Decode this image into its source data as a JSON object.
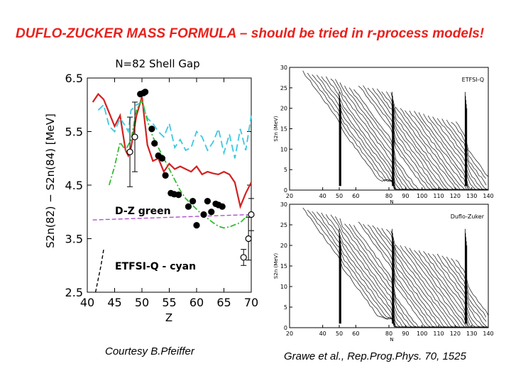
{
  "slide": {
    "title": "DUFLO-ZUCKER MASS FORMULA – should be tried in r-process models!",
    "credit_left": "Courtesy B.Pfeiffer",
    "credit_right": "Grawe et al., Rep.Prog.Phys. 70, 1525"
  },
  "colors": {
    "title": "#e8211c",
    "red_model": "#d42020",
    "cyan_model": "#3cc8e0",
    "green_model": "#33bb33",
    "magenta_line": "#b050d0"
  },
  "chart_data": [
    {
      "type": "scatter",
      "title": "N=82 Shell Gap",
      "xlabel": "Z",
      "ylabel": "S2n(82) − S2n(84) [MeV]",
      "xlim": [
        40,
        70
      ],
      "ylim": [
        2.5,
        6.5
      ],
      "xticks": [
        "40",
        "45",
        "50",
        "55",
        "60",
        "65",
        "70"
      ],
      "yticks": [
        "2.5",
        "3.5",
        "4.5",
        "5.5",
        "6.5"
      ],
      "annotations": [
        "D-Z green",
        "ETFSI-Q - cyan"
      ],
      "series": [
        {
          "name": "experiment",
          "marker": "filled",
          "x": [
            49.7,
            50.3,
            50.6,
            51.8,
            52.3,
            53.0,
            53.7,
            54.3,
            55.3,
            55.9,
            56.7,
            58.5,
            59.3,
            60.0,
            61.3,
            62.0,
            62.7,
            63.5,
            64.0,
            64.7
          ],
          "y": [
            6.2,
            6.22,
            6.24,
            5.55,
            5.28,
            5.05,
            5.0,
            4.68,
            4.35,
            4.33,
            4.32,
            4.1,
            4.2,
            3.75,
            3.95,
            4.2,
            4.0,
            4.15,
            4.13,
            4.1
          ]
        },
        {
          "name": "experiment (open)",
          "marker": "open",
          "x": [
            47.8,
            48.7,
            68.6,
            69.5,
            70.0
          ],
          "y": [
            5.12,
            5.4,
            3.15,
            3.5,
            3.95
          ],
          "err": [
            0.65,
            0.65,
            0.15,
            0.4,
            0.3
          ]
        },
        {
          "name": "red model",
          "type": "line",
          "x": [
            41,
            42,
            43,
            44,
            45,
            46,
            47,
            47.5,
            48,
            49,
            50,
            51,
            52,
            53,
            54,
            55,
            56,
            57,
            58,
            59,
            60,
            61,
            62,
            63,
            64,
            65,
            66,
            67,
            68,
            69,
            70
          ],
          "y": [
            6.05,
            6.2,
            6.1,
            5.85,
            5.6,
            5.8,
            5.15,
            5.05,
            5.2,
            5.8,
            6.15,
            5.25,
            4.95,
            5.0,
            4.75,
            4.9,
            4.8,
            4.85,
            4.8,
            4.75,
            4.85,
            4.7,
            4.75,
            4.72,
            4.7,
            4.75,
            4.7,
            4.55,
            4.1,
            4.35,
            4.55
          ]
        },
        {
          "name": "ETFSI-Q",
          "type": "line",
          "x": [
            42,
            43,
            44,
            45,
            46,
            47,
            47.5,
            48,
            49,
            50,
            51,
            52,
            53,
            54,
            55,
            56,
            57,
            58,
            59,
            60,
            61,
            62,
            63,
            64,
            65,
            66,
            67,
            68,
            69,
            70
          ],
          "y": [
            5.9,
            6.0,
            5.6,
            5.5,
            5.75,
            5.6,
            5.5,
            5.9,
            6.0,
            6.05,
            5.75,
            5.65,
            5.5,
            5.4,
            5.65,
            5.2,
            5.35,
            5.15,
            5.2,
            5.5,
            5.4,
            5.15,
            5.3,
            5.55,
            5.1,
            5.45,
            5.0,
            5.55,
            5.15,
            5.8
          ]
        },
        {
          "name": "D-Z",
          "type": "line",
          "x": [
            44,
            45,
            46,
            47,
            48,
            49,
            50,
            51,
            52,
            53,
            54,
            55,
            56,
            57,
            58,
            59,
            60,
            61,
            62,
            63,
            64,
            65,
            66,
            67,
            68,
            69,
            70
          ],
          "y": [
            4.5,
            4.85,
            5.3,
            5.15,
            5.35,
            5.9,
            6.1,
            5.7,
            5.4,
            5.2,
            5.0,
            4.8,
            4.6,
            4.4,
            4.25,
            4.15,
            4.05,
            3.95,
            3.88,
            3.8,
            3.73,
            3.7,
            3.72,
            3.76,
            3.8,
            3.9,
            4.0
          ]
        },
        {
          "name": "flat magenta",
          "type": "line",
          "x": [
            41,
            70
          ],
          "y": [
            3.85,
            3.95
          ]
        },
        {
          "name": "black model",
          "type": "line",
          "x": [
            41.5,
            42.5,
            43
          ],
          "y": [
            2.5,
            3.0,
            3.3
          ]
        }
      ]
    },
    {
      "type": "area",
      "title": "ETFSI-Q",
      "ylabel": "S2n (MeV)",
      "xlabel": "N",
      "xlim": [
        20,
        140
      ],
      "ylim": [
        0,
        30
      ],
      "xticks": [
        "20",
        "40",
        "50",
        "60",
        "80",
        "90",
        "100",
        "110",
        "120",
        "130",
        "140"
      ],
      "yticks": [
        "0",
        "5",
        "10",
        "15",
        "20",
        "25",
        "30"
      ]
    },
    {
      "type": "area",
      "title": "Duflo-Zuker",
      "ylabel": "S2n (MeV)",
      "xlabel": "N",
      "xlim": [
        20,
        140
      ],
      "ylim": [
        0,
        30
      ],
      "xticks": [
        "20",
        "40",
        "50",
        "60",
        "80",
        "90",
        "100",
        "110",
        "120",
        "130",
        "140"
      ],
      "yticks": [
        "0",
        "5",
        "10",
        "15",
        "20",
        "25",
        "30"
      ]
    }
  ]
}
